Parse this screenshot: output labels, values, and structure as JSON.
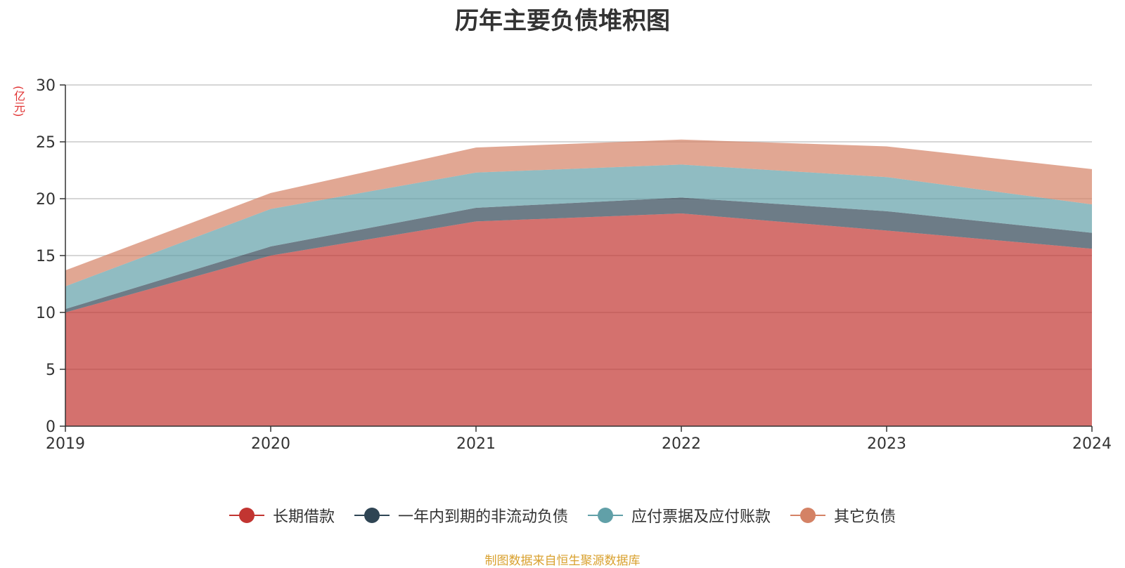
{
  "chart_data": {
    "type": "area",
    "stacked": true,
    "title": "历年主要负债堆积图",
    "unit_label": "(亿元)",
    "source_note": "制图数据来自恒生聚源数据库",
    "x": [
      "2019",
      "2020",
      "2021",
      "2022",
      "2023",
      "2024"
    ],
    "ylim": [
      0,
      30
    ],
    "y_ticks": [
      0,
      5,
      10,
      15,
      20,
      25,
      30
    ],
    "grid": true,
    "legend_position": "bottom-center",
    "series": [
      {
        "name": "长期借款",
        "color": "#c23531",
        "values": [
          10.0,
          15.0,
          18.0,
          18.7,
          17.2,
          15.6
        ]
      },
      {
        "name": "一年内到期的非流动负债",
        "color": "#2f4554",
        "values": [
          0.3,
          0.8,
          1.2,
          1.4,
          1.7,
          1.4
        ]
      },
      {
        "name": "应付票据及应付账款",
        "color": "#61a0a8",
        "values": [
          2.0,
          3.3,
          3.1,
          2.9,
          3.0,
          2.5
        ]
      },
      {
        "name": "其它负债",
        "color": "#d48265",
        "values": [
          1.4,
          1.4,
          2.2,
          2.2,
          2.7,
          3.1
        ]
      }
    ]
  }
}
